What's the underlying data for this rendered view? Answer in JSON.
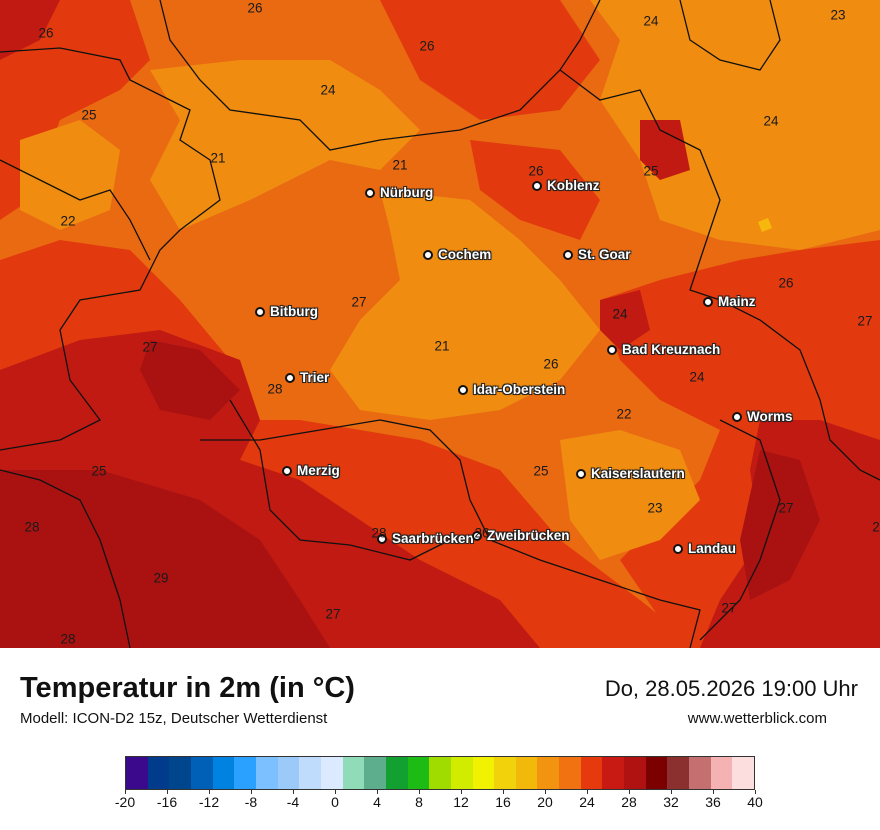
{
  "map": {
    "colors": {
      "c20_22": "#f08c10",
      "c22_24": "#ea6a12",
      "c24_26": "#e23a0e",
      "c26_28": "#c01a12",
      "c28_30": "#aa1212",
      "hot": "#f6b80c"
    },
    "cities": [
      {
        "name": "Nürburg"
      },
      {
        "name": "Koblenz"
      },
      {
        "name": "Cochem"
      },
      {
        "name": "St. Goar"
      },
      {
        "name": "Bitburg"
      },
      {
        "name": "Mainz"
      },
      {
        "name": "Bad Kreuznach"
      },
      {
        "name": "Trier"
      },
      {
        "name": "Idar-Oberstein"
      },
      {
        "name": "Worms"
      },
      {
        "name": "Merzig"
      },
      {
        "name": "Kaiserslautern"
      },
      {
        "name": "Saarbrücken"
      },
      {
        "name": "Zweibrücken"
      },
      {
        "name": "Landau"
      }
    ],
    "values": [
      "26",
      "26",
      "26",
      "24",
      "23",
      "25",
      "24",
      "24",
      "21",
      "21",
      "26",
      "25",
      "22",
      "26",
      "24",
      "27",
      "21",
      "27",
      "27",
      "26",
      "25",
      "24",
      "28",
      "22",
      "25",
      "28",
      "26",
      "23",
      "27",
      "28",
      "29",
      "27",
      "28",
      "27",
      "2"
    ]
  },
  "title": "Temperatur in 2m (in °C)",
  "subtitle": "Modell: ICON-D2 15z, Deutscher Wetterdienst",
  "datetime": "Do, 28.05.2026 19:00 Uhr",
  "website": "www.wetterblick.com",
  "legend": {
    "min": -20,
    "max": 40,
    "tick_labels": [
      "-20",
      "-16",
      "-12",
      "-8",
      "-4",
      "0",
      "4",
      "8",
      "12",
      "16",
      "20",
      "24",
      "28",
      "32",
      "36",
      "40"
    ],
    "colors": [
      "#3b0a8c",
      "#003b8c",
      "#00468c",
      "#0060b8",
      "#0082e0",
      "#2aa0ff",
      "#7cc0ff",
      "#9ccaf8",
      "#c0dcfc",
      "#dceaff",
      "#90dcb8",
      "#5cae8c",
      "#12a030",
      "#1cbc14",
      "#a0dc00",
      "#d2ec00",
      "#f0f200",
      "#f2d20a",
      "#f2b80a",
      "#f29410",
      "#f07210",
      "#e63a0e",
      "#c81a12",
      "#b01212",
      "#7c0000",
      "#8c2f2f",
      "#c47070",
      "#f4b2b2",
      "#fcdede"
    ]
  }
}
